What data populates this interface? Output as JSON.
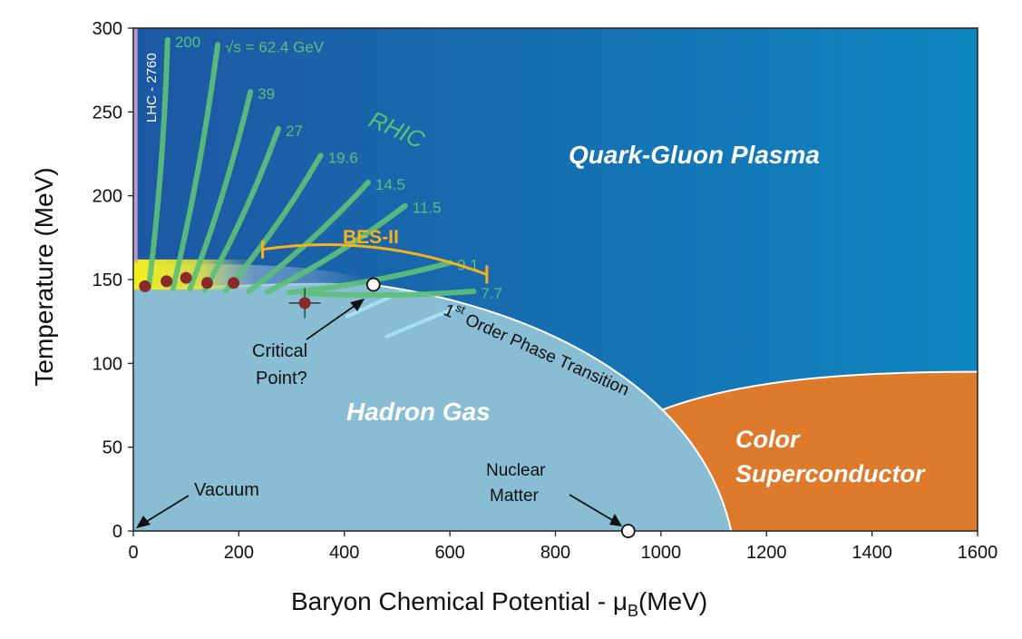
{
  "axes": {
    "x_title_main": "Baryon Chemical Potential - μ",
    "x_title_sub": "B",
    "x_title_unit": "(MeV)",
    "y_title": "Temperature (MeV)",
    "xlim": [
      0,
      1600
    ],
    "ylim": [
      0,
      300
    ],
    "x_ticks": [
      "0",
      "200",
      "400",
      "600",
      "800",
      "1000",
      "1200",
      "1400",
      "1600"
    ],
    "y_ticks": [
      "0",
      "50",
      "100",
      "150",
      "200",
      "250",
      "300"
    ]
  },
  "regions": {
    "qgp": "Quark-Gluon Plasma",
    "hadron_gas": "Hadron Gas",
    "color_sc_line1": "Color",
    "color_sc_line2": "Superconductor"
  },
  "labels": {
    "lhc": "LHC - 2760",
    "rhic": "RHIC",
    "bes": "BES-II",
    "transition_prefix": "1",
    "transition_sup": "st",
    "transition_rest": " Order Phase Transition",
    "critical_line1": "Critical",
    "critical_line2": "Point?",
    "vacuum": "Vacuum",
    "nuclear_line1": "Nuclear",
    "nuclear_line2": "Matter"
  },
  "energies": [
    {
      "label": "200",
      "mu_top": 65,
      "t_top": 293
    },
    {
      "label": "√s = 62.4 GeV",
      "mu_top": 160,
      "t_top": 290
    },
    {
      "label": "39",
      "mu_top": 222,
      "t_top": 262
    },
    {
      "label": "27",
      "mu_top": 275,
      "t_top": 240
    },
    {
      "label": "19.6",
      "mu_top": 355,
      "t_top": 224
    },
    {
      "label": "14.5",
      "mu_top": 445,
      "t_top": 208
    },
    {
      "label": "11.5",
      "mu_top": 515,
      "t_top": 194
    },
    {
      "label": "9.1",
      "mu_top": 600,
      "t_top": 160
    },
    {
      "label": "7.7",
      "mu_top": 645,
      "t_top": 143
    }
  ],
  "freezeout_points": [
    {
      "mu": 22,
      "T": 146
    },
    {
      "mu": 63,
      "T": 149
    },
    {
      "mu": 100,
      "T": 151
    },
    {
      "mu": 140,
      "T": 148
    },
    {
      "mu": 190,
      "T": 148
    },
    {
      "mu": 325,
      "T": 136,
      "mu_err": 30,
      "t_err": 9
    }
  ],
  "critical_point": {
    "mu": 455,
    "T": 147
  },
  "nuclear_matter": {
    "mu": 938,
    "T": 0
  },
  "bes_range": {
    "mu_start": 245,
    "mu_end": 670,
    "t_start": 168,
    "t_peak": 172,
    "t_end": 153
  },
  "colors": {
    "qgp_dark": "#1d58a3",
    "qgp_light": "#0f86bf",
    "hadron": "#88bdd3",
    "color_sc": "#de7a2c",
    "rhic_green": "#5cbf7a",
    "bes_gold": "#f6b21c",
    "lhc_pink": "#c9a3cc",
    "point_red": "#8b2a2a"
  }
}
